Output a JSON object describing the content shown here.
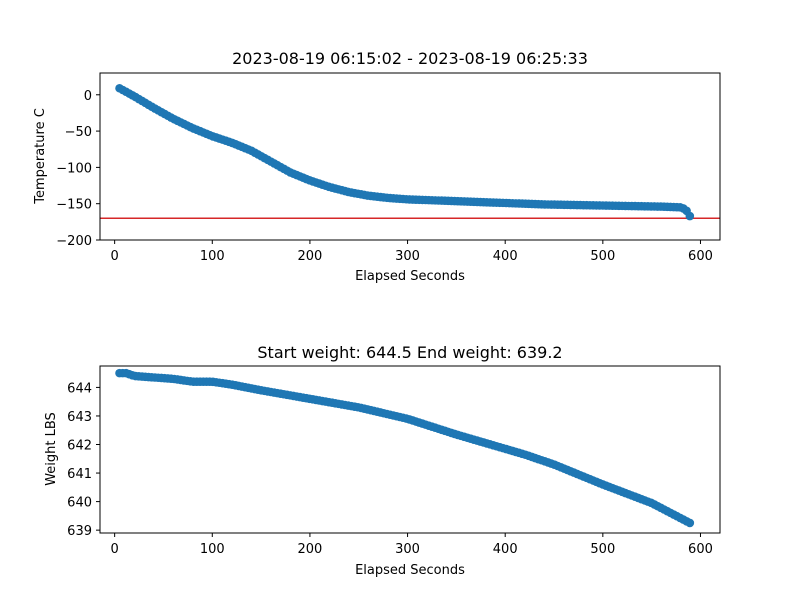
{
  "chart_data": [
    {
      "type": "scatter",
      "title": "2023-08-19 06:15:02 - 2023-08-19 06:25:33",
      "xlabel": "Elapsed Seconds",
      "ylabel": "Temperature C",
      "xlim": [
        -15,
        620
      ],
      "ylim": [
        -200,
        30
      ],
      "xticks": [
        0,
        100,
        200,
        300,
        400,
        500,
        600
      ],
      "yticks": [
        0,
        -50,
        -100,
        -150,
        -200
      ],
      "series_color": "#1f77b4",
      "reference_line": {
        "y": -170,
        "color": "#d62728"
      },
      "anchors": [
        [
          5,
          9
        ],
        [
          20,
          -2
        ],
        [
          40,
          -18
        ],
        [
          60,
          -33
        ],
        [
          80,
          -46
        ],
        [
          100,
          -57
        ],
        [
          120,
          -66
        ],
        [
          140,
          -77
        ],
        [
          160,
          -92
        ],
        [
          180,
          -107
        ],
        [
          200,
          -118
        ],
        [
          220,
          -127
        ],
        [
          240,
          -134
        ],
        [
          260,
          -139
        ],
        [
          280,
          -142
        ],
        [
          300,
          -144
        ],
        [
          320,
          -145
        ],
        [
          340,
          -146
        ],
        [
          360,
          -147
        ],
        [
          380,
          -148
        ],
        [
          400,
          -149
        ],
        [
          420,
          -150
        ],
        [
          440,
          -151
        ],
        [
          460,
          -151.5
        ],
        [
          480,
          -152
        ],
        [
          500,
          -152.5
        ],
        [
          520,
          -153
        ],
        [
          540,
          -153.5
        ],
        [
          560,
          -154
        ],
        [
          580,
          -155
        ],
        [
          585,
          -158
        ],
        [
          590,
          -169
        ]
      ],
      "step": 3.3,
      "grid": false
    },
    {
      "type": "scatter",
      "title": "Start weight: 644.5 End weight: 639.2",
      "xlabel": "Elapsed Seconds",
      "ylabel": "Weight LBS",
      "xlim": [
        -15,
        620
      ],
      "ylim": [
        638.9,
        644.75
      ],
      "xticks": [
        0,
        100,
        200,
        300,
        400,
        500,
        600
      ],
      "yticks": [
        639,
        640,
        641,
        642,
        643,
        644
      ],
      "series_color": "#1f77b4",
      "anchors": [
        [
          5,
          644.5
        ],
        [
          12,
          644.5
        ],
        [
          20,
          644.4
        ],
        [
          60,
          644.3
        ],
        [
          80,
          644.2
        ],
        [
          100,
          644.2
        ],
        [
          120,
          644.1
        ],
        [
          150,
          643.9
        ],
        [
          200,
          643.6
        ],
        [
          250,
          643.3
        ],
        [
          300,
          642.9
        ],
        [
          350,
          642.35
        ],
        [
          400,
          641.85
        ],
        [
          420,
          641.65
        ],
        [
          450,
          641.3
        ],
        [
          500,
          640.6
        ],
        [
          550,
          639.95
        ],
        [
          592,
          639.2
        ]
      ],
      "step": 3.3,
      "grid": false
    }
  ]
}
